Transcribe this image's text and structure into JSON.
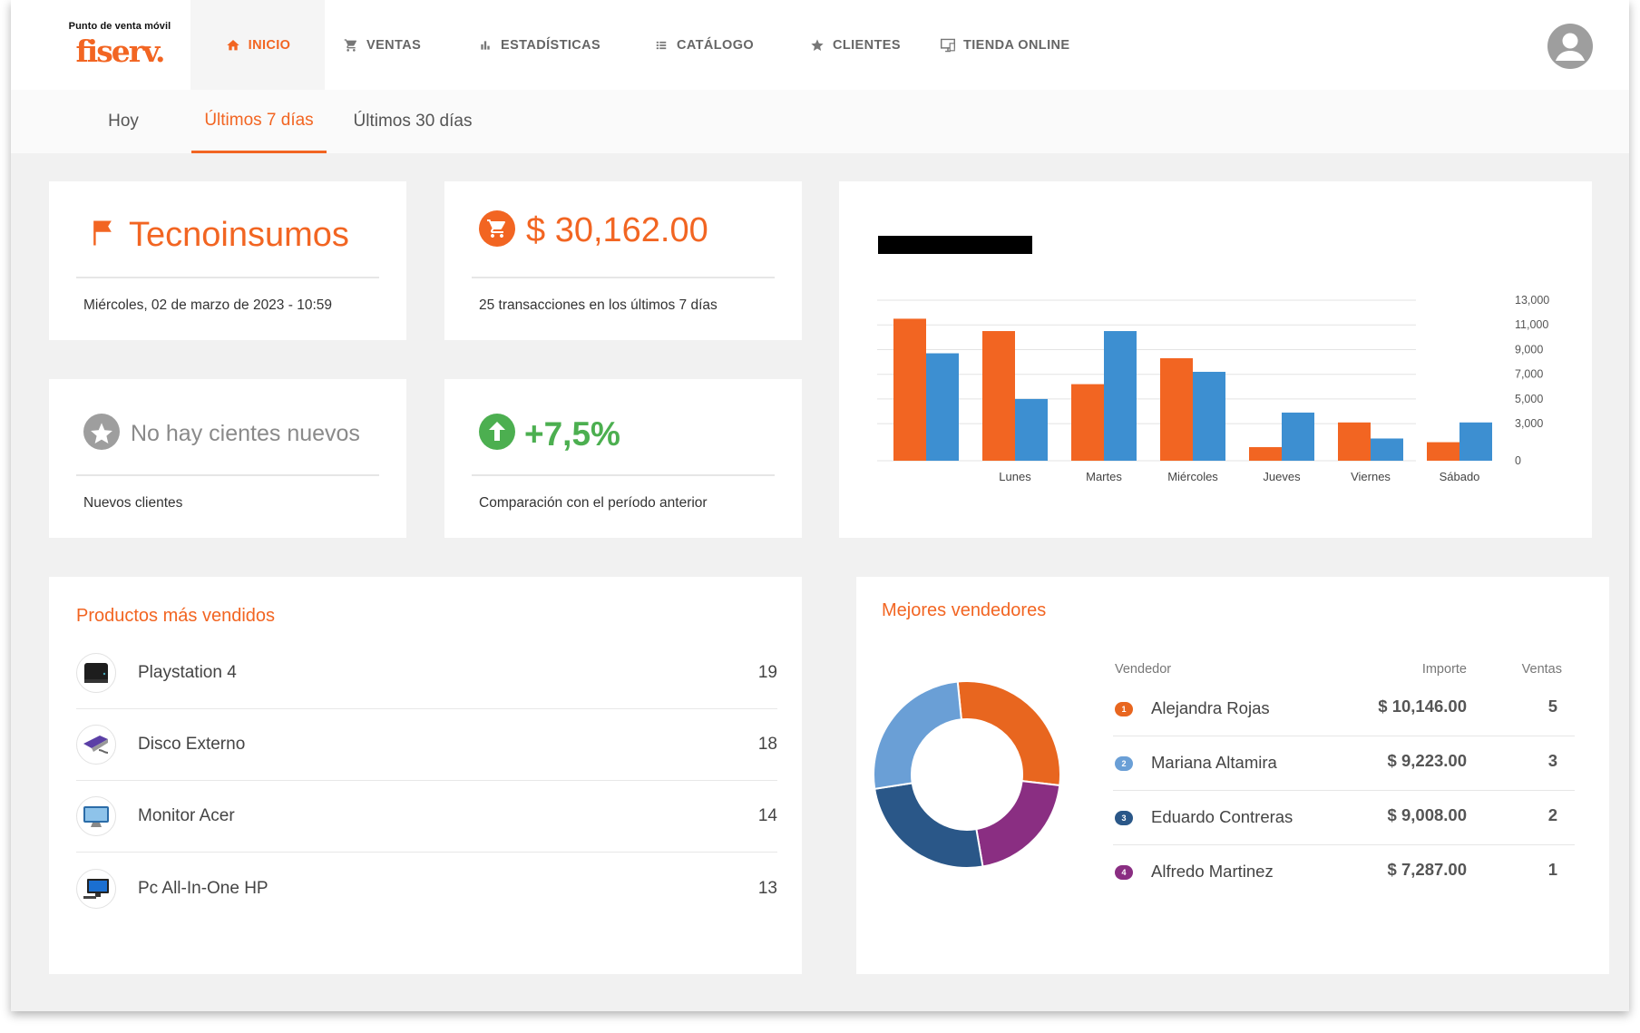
{
  "logo": {
    "subtitle": "Punto de venta móvil",
    "brand": "fiserv."
  },
  "nav": {
    "items": [
      {
        "label": "INICIO",
        "icon": "home-icon",
        "active": true
      },
      {
        "label": "VENTAS",
        "icon": "cart-icon",
        "active": false
      },
      {
        "label": "ESTADÍSTICAS",
        "icon": "bar-chart-icon",
        "active": false
      },
      {
        "label": "CATÁLOGO",
        "icon": "list-icon",
        "active": false
      },
      {
        "label": "CLIENTES",
        "icon": "star-icon",
        "active": false
      },
      {
        "label": "TIENDA ONLINE",
        "icon": "monitor-icon",
        "active": false
      }
    ],
    "avatar_icon": "user-avatar-icon"
  },
  "subtabs": [
    {
      "label": "Hoy",
      "active": false
    },
    {
      "label": "Últimos 7 días",
      "active": true
    },
    {
      "label": "Últimos 30 días",
      "active": false
    }
  ],
  "kpis": {
    "store": {
      "title": "Tecnoinsumos",
      "footer": "Miércoles, 02 de marzo de 2023 - 10:59",
      "icon": "flag-icon"
    },
    "revenue": {
      "title": "$ 30,162.00",
      "footer": "25 transacciones en los últimos 7 días",
      "icon": "cart-circle-icon"
    },
    "clients": {
      "title": "No hay cientes nuevos",
      "footer": "Nuevos clientes",
      "icon": "star-circle-icon"
    },
    "growth": {
      "title": "+7,5%",
      "footer": "Comparación con el período anterior",
      "icon": "arrow-up-circle-icon"
    }
  },
  "colors": {
    "accent": "#f26522",
    "blue": "#3d8fd1",
    "green": "#4caf50",
    "grey": "#9e9e9e"
  },
  "chart_data": {
    "type": "bar",
    "categories": [
      "",
      "Lunes",
      "Martes",
      "Miércoles",
      "Jueves",
      "Viernes",
      "Sábado"
    ],
    "series": [
      {
        "color": "#f26522",
        "values": [
          11500,
          10500,
          6200,
          8300,
          1100,
          3100,
          1500
        ]
      },
      {
        "color": "#3d8fd1",
        "values": [
          8700,
          5000,
          10500,
          7200,
          3900,
          1800,
          3100
        ]
      }
    ],
    "yticks": [
      "13,000",
      "11,000",
      "9,000",
      "7,000",
      "5,000",
      "3,000",
      "0"
    ],
    "ytick_values": [
      13000,
      11000,
      9000,
      7000,
      5000,
      3000,
      0
    ],
    "ylim": [
      0,
      13000
    ],
    "grid": true
  },
  "products": {
    "title": "Productos más vendidos",
    "items": [
      {
        "name": "Playstation 4",
        "qty": "19",
        "icon": "console-icon"
      },
      {
        "name": "Disco Externo",
        "qty": "18",
        "icon": "external-disk-icon"
      },
      {
        "name": "Monitor Acer",
        "qty": "14",
        "icon": "monitor-product-icon"
      },
      {
        "name": "Pc All-In-One HP",
        "qty": "13",
        "icon": "desktop-pc-icon"
      }
    ]
  },
  "sellers": {
    "title": "Mejores vendedores",
    "headers": {
      "seller": "Vendedor",
      "amount": "Importe",
      "sales": "Ventas"
    },
    "rows": [
      {
        "rank": "1",
        "name": "Alejandra Rojas",
        "amount": "$ 10,146.00",
        "sales": "5",
        "color": "#e8661f"
      },
      {
        "rank": "2",
        "name": "Mariana Altamira",
        "amount": "$ 9,223.00",
        "sales": "3",
        "color": "#6a9fd6"
      },
      {
        "rank": "3",
        "name": "Eduardo Contreras",
        "amount": "$ 9,008.00",
        "sales": "2",
        "color": "#2a5788"
      },
      {
        "rank": "4",
        "name": "Alfredo Martinez",
        "amount": "$ 7,287.00",
        "sales": "1",
        "color": "#8a2e82"
      }
    ],
    "donut_data": [
      10146,
      9223,
      9008,
      7287
    ]
  }
}
